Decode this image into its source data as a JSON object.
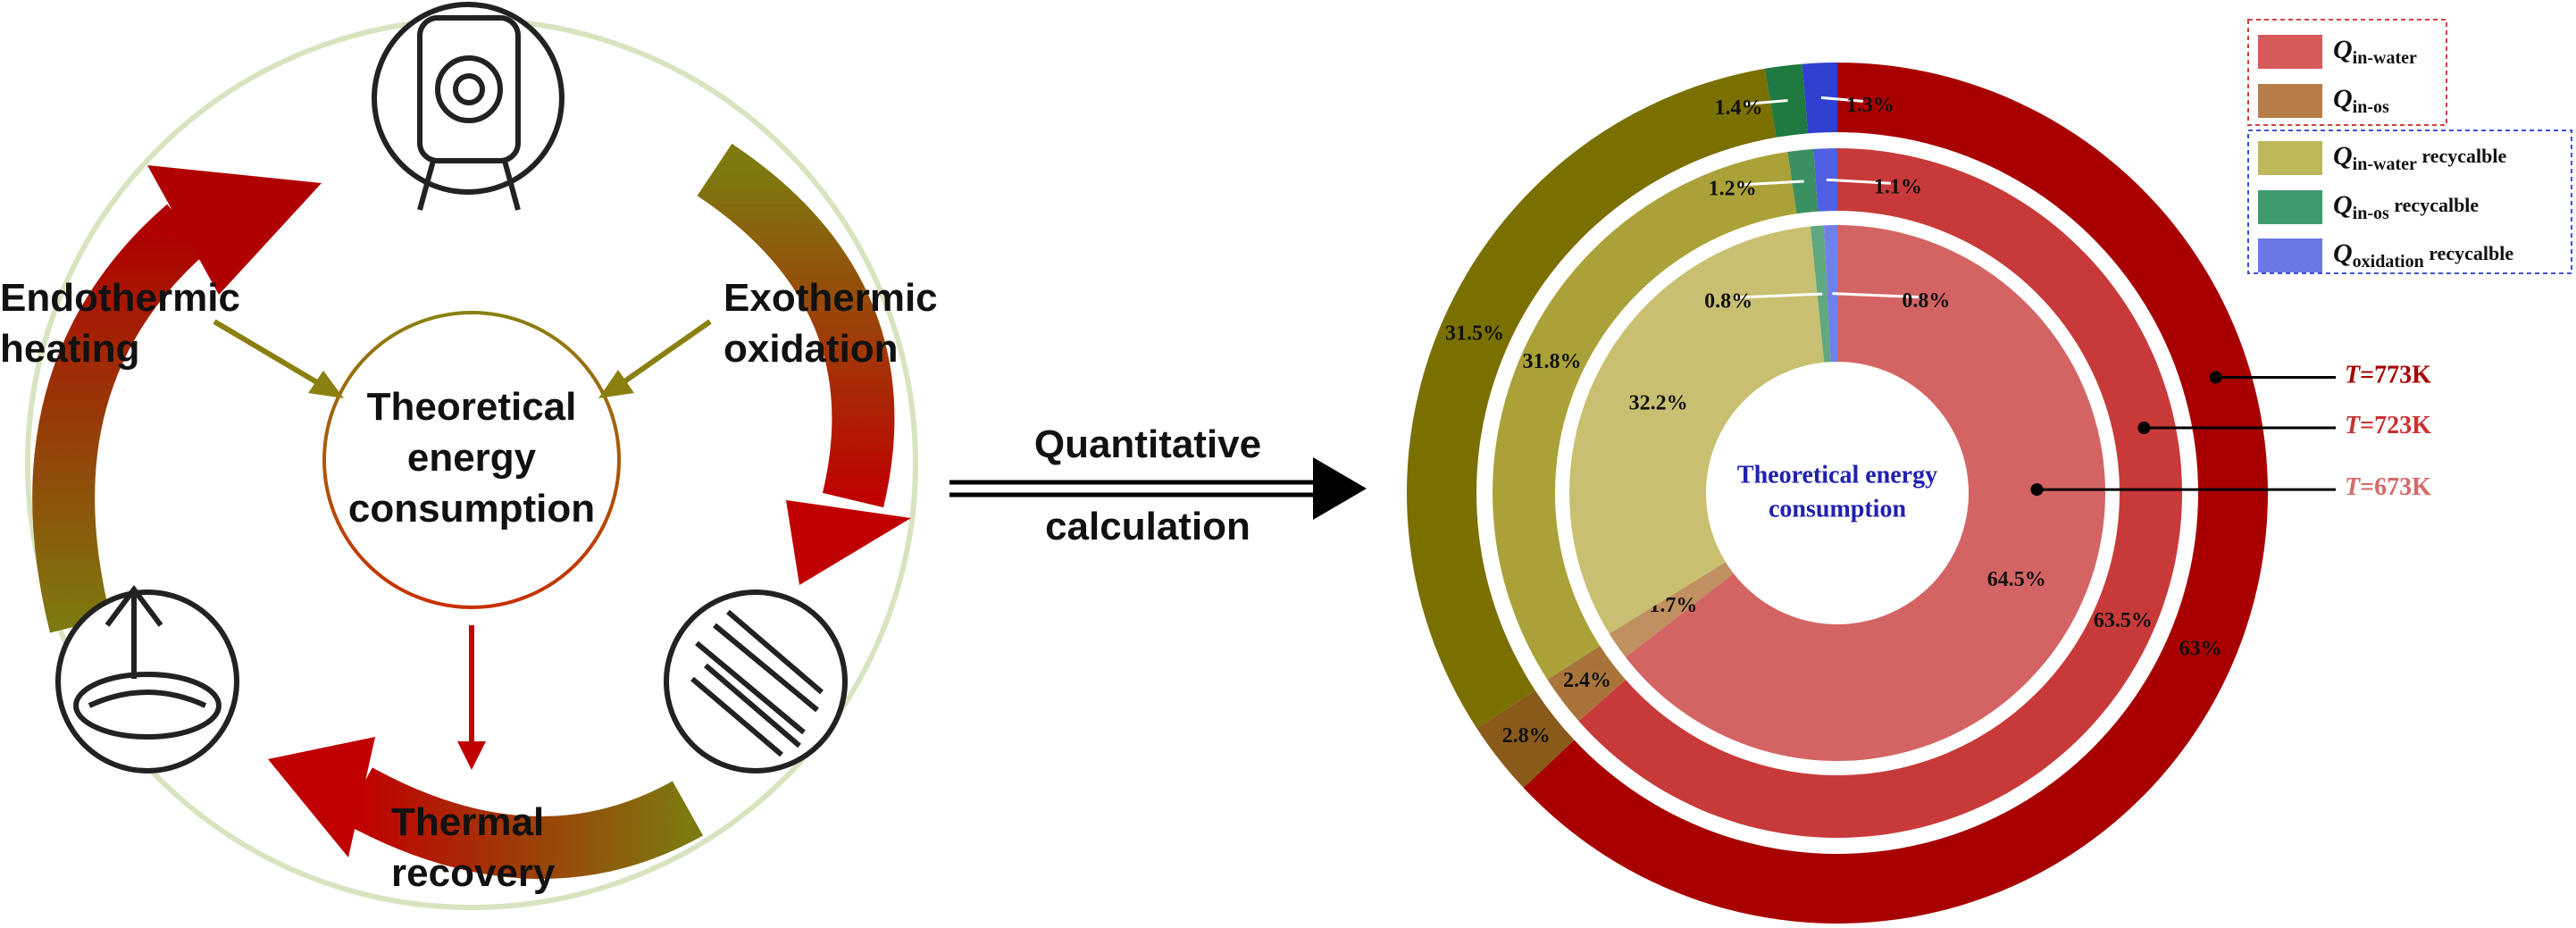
{
  "diagram": {
    "center_lines": [
      "Theoretical",
      "energy",
      "consumption"
    ],
    "left_lines": [
      "Endothermic",
      "heating"
    ],
    "right_lines": [
      "Exothermic",
      "oxidation"
    ],
    "bottom_lines": [
      "Thermal",
      "recovery"
    ],
    "arrow_lines": [
      "Quantitative",
      "calculation"
    ]
  },
  "chart_data": {
    "type": "nested_donut",
    "center_label": [
      "Theoretical energy",
      "consumption"
    ],
    "categories": [
      "Qin-water",
      "Qin-os",
      "Qin-water recycalble",
      "Qin-os recycalble",
      "Qoxidation recycalble"
    ],
    "legend_colors": [
      "#d65a5a",
      "#b87c48",
      "#bdb85a",
      "#3f9a6e",
      "#6a78e6"
    ],
    "series": [
      {
        "name": "T=773K",
        "color": "#a40000",
        "colors": [
          "#a80000",
          "#8a5a1a",
          "#7a7000",
          "#1e7a40",
          "#3040d0"
        ],
        "values": [
          63,
          2.8,
          31.5,
          1.4,
          1.3
        ],
        "value_labels": [
          "63%",
          "2.8%",
          "31.5%",
          "1.4%",
          "1.3%"
        ]
      },
      {
        "name": "T=723K",
        "color": "#c83232",
        "colors": [
          "#c83a3a",
          "#a8743a",
          "#aaa238",
          "#3a9060",
          "#5060e0"
        ],
        "values": [
          63.5,
          2.4,
          31.8,
          1.2,
          1.1
        ],
        "value_labels": [
          "63.5%",
          "2.4%",
          "31.8%",
          "1.2%",
          "1.1%"
        ]
      },
      {
        "name": "T=673K",
        "color": "#d66a6a",
        "colors": [
          "#d46464",
          "#c09060",
          "#c8c070",
          "#60a880",
          "#7080e8"
        ],
        "values": [
          64.5,
          1.7,
          32.2,
          0.8,
          0.8
        ],
        "value_labels": [
          "64.5%",
          "1.7%",
          "32.2%",
          "0.8%",
          "0.8%"
        ]
      }
    ]
  }
}
